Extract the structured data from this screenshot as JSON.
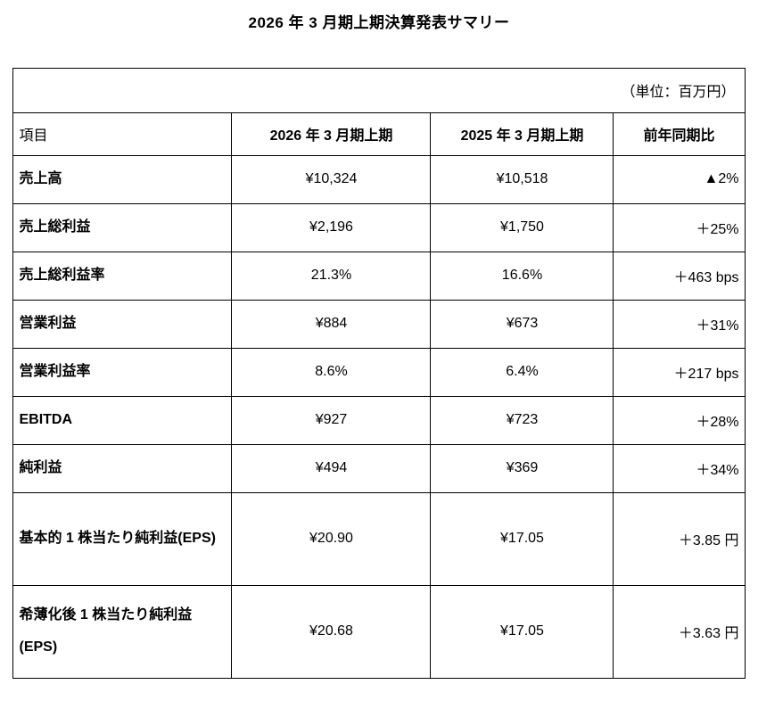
{
  "colors": {
    "background": "#ffffff",
    "text": "#000000",
    "border": "#000000"
  },
  "page": {
    "title": "2026 年 3 月期上期決算発表サマリー",
    "unit_note": "（単位：百万円）"
  },
  "table": {
    "headers": [
      "項目",
      "2026 年 3 月期上期",
      "2025 年 3 月期上期",
      "前年同期比"
    ],
    "rows": [
      {
        "label": "売上高",
        "fy2026": "¥10,324",
        "fy2025": "¥10,518",
        "yoy": "▲2%"
      },
      {
        "label": "売上総利益",
        "fy2026": "¥2,196",
        "fy2025": "¥1,750",
        "yoy": "＋25%"
      },
      {
        "label": "売上総利益率",
        "fy2026": "21.3%",
        "fy2025": "16.6%",
        "yoy": "＋463 bps"
      },
      {
        "label": "営業利益",
        "fy2026": "¥884",
        "fy2025": "¥673",
        "yoy": "＋31%"
      },
      {
        "label": "営業利益率",
        "fy2026": "8.6%",
        "fy2025": "6.4%",
        "yoy": "＋217 bps"
      },
      {
        "label": "EBITDA",
        "fy2026": "¥927",
        "fy2025": "¥723",
        "yoy": "＋28%"
      },
      {
        "label": "純利益",
        "fy2026": "¥494",
        "fy2025": "¥369",
        "yoy": "＋34%"
      },
      {
        "label": "基本的 1 株当たり純利益(EPS)",
        "fy2026": "¥20.90",
        "fy2025": "¥17.05",
        "yoy": "＋3.85 円"
      },
      {
        "label": "希薄化後 1 株当たり純利益(EPS)",
        "fy2026": "¥20.68",
        "fy2025": "¥17.05",
        "yoy": "＋3.63 円"
      }
    ]
  }
}
